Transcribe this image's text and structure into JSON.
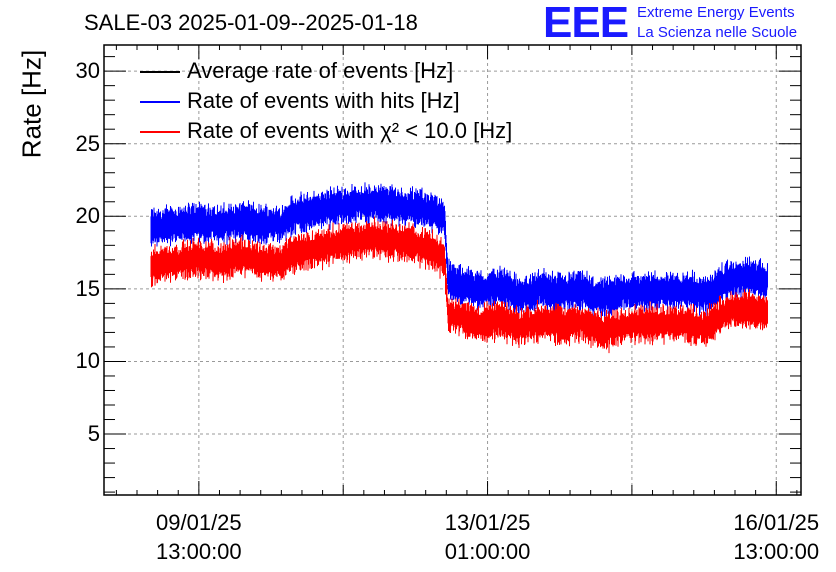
{
  "chart_data": {
    "type": "line",
    "title": "SALE-03 2025-01-09--2025-01-18",
    "xlabel": "",
    "ylabel": "Rate [Hz]",
    "ylim": [
      0.8,
      31.8
    ],
    "yticks": [
      5,
      10,
      15,
      20,
      25,
      30
    ],
    "xticks": [
      {
        "line1": "09/01/25",
        "line2": "13:00:00",
        "day": 0
      },
      {
        "line1": "13/01/25",
        "line2": "01:00:00",
        "day": 3.5
      },
      {
        "line1": "16/01/25",
        "line2": "13:00:00",
        "day": 7
      }
    ],
    "xlim_days": [
      -1.15,
      7.3
    ],
    "grid": true,
    "legend_position": "top-left",
    "series": [
      {
        "name": "Average rate of events [Hz]",
        "color": "#000000",
        "x_days": [],
        "values": []
      },
      {
        "name": "Rate of events with hits [Hz]",
        "color": "#0000ff",
        "x_days": [
          -0.58,
          -0.25,
          0.0,
          0.25,
          0.5,
          0.75,
          1.0,
          1.1,
          1.35,
          1.6,
          1.85,
          2.1,
          2.35,
          2.6,
          2.85,
          2.98,
          3.02,
          3.15,
          3.4,
          3.65,
          3.9,
          4.15,
          4.4,
          4.65,
          4.9,
          5.15,
          5.4,
          5.65,
          5.9,
          6.15,
          6.4,
          6.6,
          6.8,
          6.9
        ],
        "values": [
          19.2,
          19.5,
          19.6,
          19.4,
          19.7,
          19.5,
          19.4,
          20.0,
          20.3,
          20.6,
          20.8,
          20.9,
          20.8,
          20.6,
          20.3,
          19.9,
          15.6,
          15.3,
          14.9,
          15.2,
          14.5,
          15.0,
          14.7,
          14.9,
          14.3,
          14.8,
          14.8,
          14.9,
          14.9,
          14.6,
          15.6,
          15.8,
          15.7,
          15.6
        ]
      },
      {
        "name": "Rate of events with χ² < 10.0 [Hz]",
        "color": "#ff0000",
        "x_days": [
          -0.58,
          -0.25,
          0.0,
          0.25,
          0.5,
          0.75,
          1.0,
          1.1,
          1.35,
          1.6,
          1.85,
          2.1,
          2.35,
          2.6,
          2.85,
          2.98,
          3.02,
          3.15,
          3.4,
          3.65,
          3.9,
          4.15,
          4.4,
          4.65,
          4.9,
          5.15,
          5.4,
          5.65,
          5.9,
          6.15,
          6.4,
          6.6,
          6.8,
          6.9
        ],
        "values": [
          16.6,
          16.9,
          17.1,
          16.9,
          17.2,
          16.9,
          16.8,
          17.4,
          17.7,
          18.0,
          18.3,
          18.5,
          18.3,
          18.1,
          17.6,
          17.0,
          13.3,
          13.0,
          12.6,
          12.9,
          12.3,
          12.8,
          12.5,
          12.7,
          12.0,
          12.5,
          12.6,
          12.6,
          12.6,
          12.3,
          13.4,
          13.6,
          13.4,
          13.3
        ]
      }
    ]
  },
  "logo": {
    "mark": "EEE",
    "line1": "Extreme Energy Events",
    "line2": "La Scienza nelle Scuole"
  }
}
